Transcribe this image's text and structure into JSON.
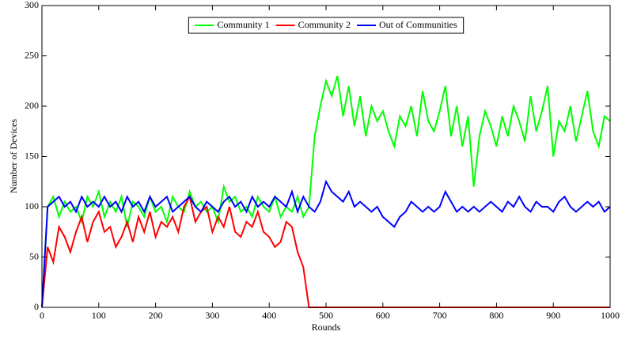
{
  "chart_data": {
    "type": "line",
    "xlabel": "Rounds",
    "ylabel": "Number of Devices",
    "x": [
      0,
      10,
      20,
      30,
      40,
      50,
      60,
      70,
      80,
      90,
      100,
      110,
      120,
      130,
      140,
      150,
      160,
      170,
      180,
      190,
      200,
      210,
      220,
      230,
      240,
      250,
      260,
      270,
      280,
      290,
      300,
      310,
      320,
      330,
      340,
      350,
      360,
      370,
      380,
      390,
      400,
      410,
      420,
      430,
      440,
      450,
      460,
      470,
      480,
      490,
      500,
      510,
      520,
      530,
      540,
      550,
      560,
      570,
      580,
      590,
      600,
      610,
      620,
      630,
      640,
      650,
      660,
      670,
      680,
      690,
      700,
      710,
      720,
      730,
      740,
      750,
      760,
      770,
      780,
      790,
      800,
      810,
      820,
      830,
      840,
      850,
      860,
      870,
      880,
      890,
      900,
      910,
      920,
      930,
      940,
      950,
      960,
      970,
      980,
      990,
      1000
    ],
    "series": [
      {
        "name": "Community 1",
        "color": "#00ff00",
        "values": [
          0,
          100,
          110,
          90,
          105,
          95,
          100,
          85,
          110,
          100,
          115,
          90,
          105,
          95,
          110,
          80,
          105,
          100,
          90,
          110,
          95,
          100,
          85,
          110,
          100,
          95,
          115,
          100,
          105,
          95,
          100,
          85,
          120,
          105,
          110,
          95,
          100,
          90,
          110,
          100,
          95,
          110,
          90,
          100,
          95,
          110,
          90,
          100,
          170,
          200,
          225,
          210,
          230,
          190,
          220,
          180,
          210,
          170,
          200,
          185,
          195,
          175,
          160,
          190,
          180,
          200,
          170,
          215,
          185,
          175,
          195,
          220,
          170,
          200,
          160,
          190,
          120,
          170,
          195,
          180,
          160,
          190,
          170,
          200,
          185,
          165,
          210,
          175,
          195,
          220,
          150,
          185,
          175,
          200,
          165,
          190,
          215,
          175,
          160,
          190,
          185
        ]
      },
      {
        "name": "Community 2",
        "color": "#ff0000",
        "values": [
          0,
          60,
          45,
          80,
          70,
          55,
          75,
          90,
          65,
          85,
          95,
          75,
          80,
          60,
          70,
          85,
          65,
          90,
          75,
          95,
          70,
          85,
          80,
          90,
          75,
          100,
          110,
          85,
          95,
          100,
          75,
          90,
          80,
          100,
          75,
          70,
          85,
          80,
          95,
          75,
          70,
          60,
          65,
          85,
          80,
          55,
          40,
          0,
          0,
          0,
          0,
          0,
          0,
          0,
          0,
          0,
          0,
          0,
          0,
          0,
          0,
          0,
          0,
          0,
          0,
          0,
          0,
          0,
          0,
          0,
          0,
          0,
          0,
          0,
          0,
          0,
          0,
          0,
          0,
          0,
          0,
          0,
          0,
          0,
          0,
          0,
          0,
          0,
          0,
          0,
          0,
          0,
          0,
          0,
          0,
          0,
          0,
          0,
          0,
          0,
          0
        ]
      },
      {
        "name": "Out of Communities",
        "color": "#0000ff",
        "values": [
          0,
          100,
          105,
          110,
          100,
          105,
          95,
          110,
          100,
          105,
          100,
          110,
          100,
          105,
          95,
          110,
          100,
          105,
          95,
          110,
          100,
          105,
          110,
          95,
          100,
          105,
          110,
          100,
          95,
          105,
          100,
          95,
          105,
          110,
          100,
          105,
          95,
          110,
          100,
          105,
          100,
          110,
          105,
          100,
          115,
          95,
          110,
          100,
          95,
          105,
          125,
          115,
          110,
          105,
          115,
          100,
          105,
          100,
          95,
          100,
          90,
          85,
          80,
          90,
          95,
          105,
          100,
          95,
          100,
          95,
          100,
          115,
          105,
          95,
          100,
          95,
          100,
          95,
          100,
          105,
          100,
          95,
          105,
          100,
          110,
          100,
          95,
          105,
          100,
          100,
          95,
          105,
          110,
          100,
          95,
          100,
          105,
          100,
          105,
          95,
          100
        ]
      }
    ],
    "xlim": [
      0,
      1000
    ],
    "xticks": [
      0,
      100,
      200,
      300,
      400,
      500,
      600,
      700,
      800,
      900,
      1000
    ],
    "ylim": [
      0,
      300
    ],
    "yticks": [
      0,
      50,
      100,
      150,
      200,
      250,
      300
    ],
    "grid": false,
    "legend": "top"
  }
}
